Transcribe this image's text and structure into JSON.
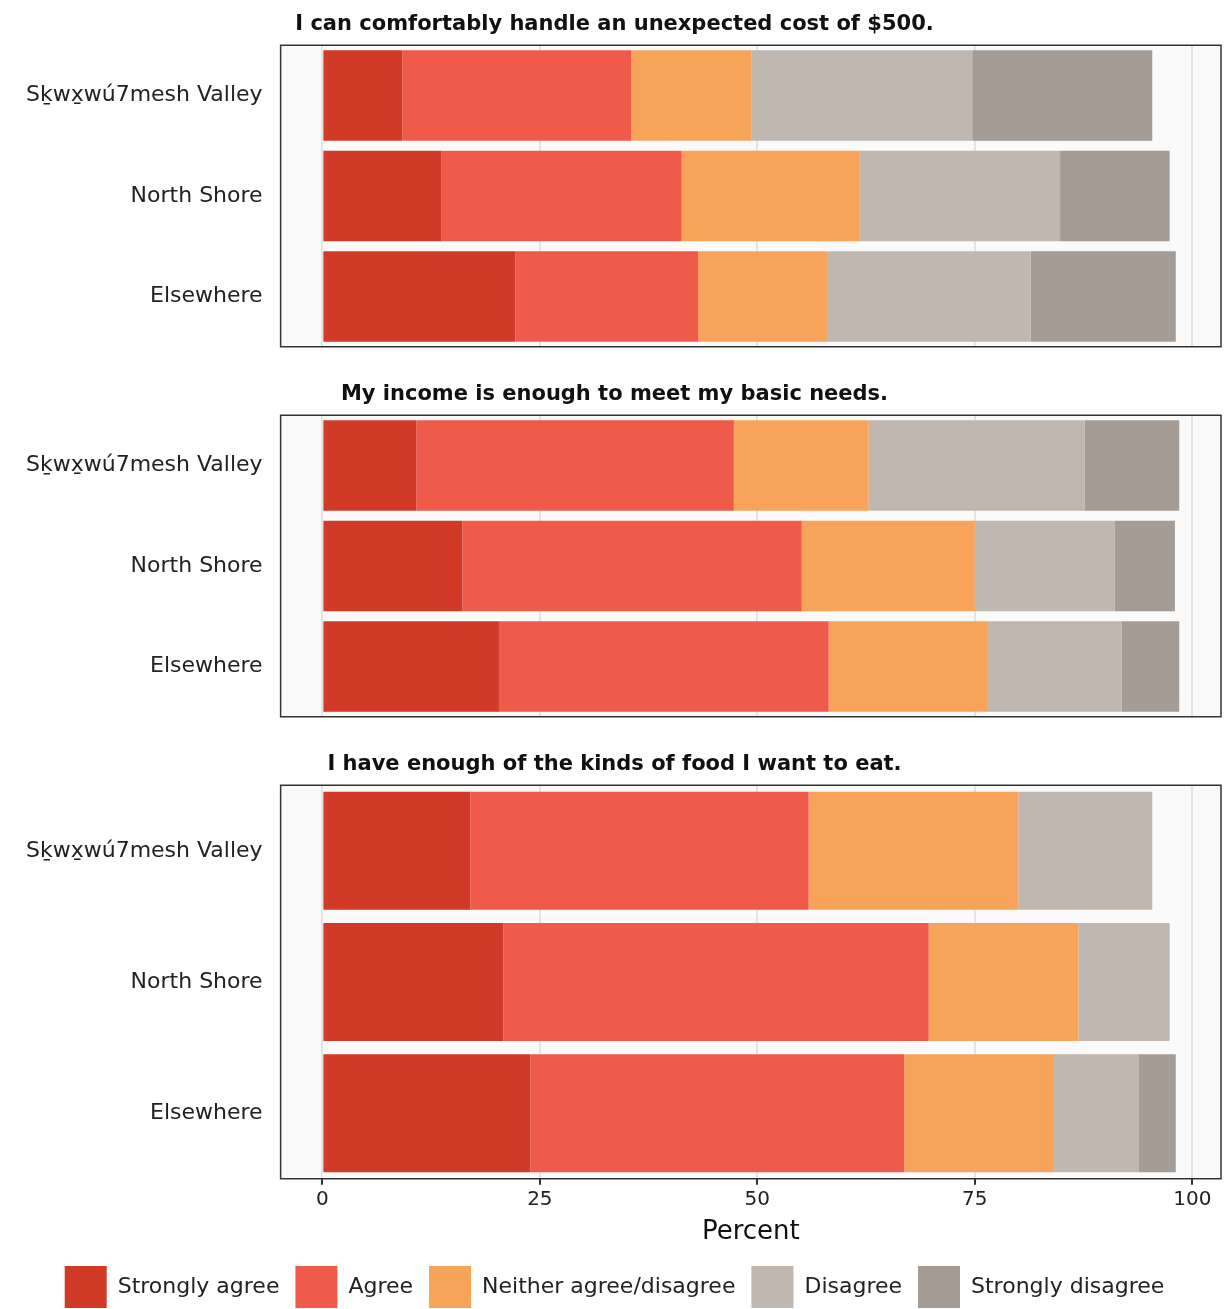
{
  "chart_data": [
    {
      "type": "bar",
      "orientation": "horizontal",
      "stacked": true,
      "title": "I can comfortably handle an unexpected cost of $500.",
      "categories": [
        "Sḵwx̱wú7mesh Valley",
        "North Shore",
        "Elsewhere"
      ],
      "series": [
        {
          "color": "#d13a27",
          "values": [
            9.2,
            13.7,
            22.2
          ]
        },
        {
          "color": "#f05a4a",
          "values": [
            26.3,
            27.6,
            21.0
          ]
        },
        {
          "color": "#f7a35a",
          "values": [
            13.8,
            20.4,
            14.8
          ]
        },
        {
          "color": "#bfb7b0",
          "values": [
            25.4,
            23.1,
            23.4
          ]
        },
        {
          "color": "#a59c95",
          "values": [
            20.7,
            12.6,
            16.7
          ]
        }
      ],
      "xlim": [
        -4.8,
        103.3
      ],
      "xticks": [
        0,
        25,
        50,
        75,
        100
      ],
      "tick_labels": "y",
      "grid": "x",
      "legend": false
    },
    {
      "type": "bar",
      "orientation": "horizontal",
      "stacked": true,
      "title": "My income is enough to meet my basic needs.",
      "categories": [
        "Sḵwx̱wú7mesh Valley",
        "North Shore",
        "Elsewhere"
      ],
      "series": [
        {
          "color": "#d13a27",
          "values": [
            10.8,
            16.1,
            20.3
          ]
        },
        {
          "color": "#f05a4a",
          "values": [
            36.5,
            39.0,
            37.9
          ]
        },
        {
          "color": "#f7a35a",
          "values": [
            15.5,
            19.9,
            18.2
          ]
        },
        {
          "color": "#bfb7b0",
          "values": [
            24.8,
            16.1,
            15.5
          ]
        },
        {
          "color": "#a59c95",
          "values": [
            10.9,
            6.9,
            6.6
          ]
        }
      ],
      "xlim": [
        -4.8,
        103.3
      ],
      "xticks": [
        0,
        25,
        50,
        75,
        100
      ],
      "tick_labels": "y",
      "grid": "x",
      "legend": false
    },
    {
      "type": "bar",
      "orientation": "horizontal",
      "stacked": true,
      "title": "I have enough of the kinds of food I want to eat.",
      "xlabel": "Percent",
      "categories": [
        "Sḵwx̱wú7mesh Valley",
        "North Shore",
        "Elsewhere"
      ],
      "series": [
        {
          "name": "Strongly agree",
          "color": "#d13a27",
          "values": [
            17.0,
            20.8,
            23.9
          ]
        },
        {
          "name": "Agree",
          "color": "#f05a4a",
          "values": [
            38.9,
            48.9,
            43.0
          ]
        },
        {
          "name": "Neither agree/disagree",
          "color": "#f7a35a",
          "values": [
            24.1,
            17.2,
            17.2
          ]
        },
        {
          "name": "Disagree",
          "color": "#bfb7b0",
          "values": [
            15.4,
            10.5,
            9.7
          ]
        },
        {
          "name": "Strongly disagree",
          "color": "#a59c95",
          "values": [
            null,
            null,
            4.3
          ]
        }
      ],
      "xlim": [
        -4.8,
        103.3
      ],
      "xticks": [
        0,
        25,
        50,
        75,
        100
      ],
      "grid": "x",
      "legend": "bottom"
    }
  ]
}
